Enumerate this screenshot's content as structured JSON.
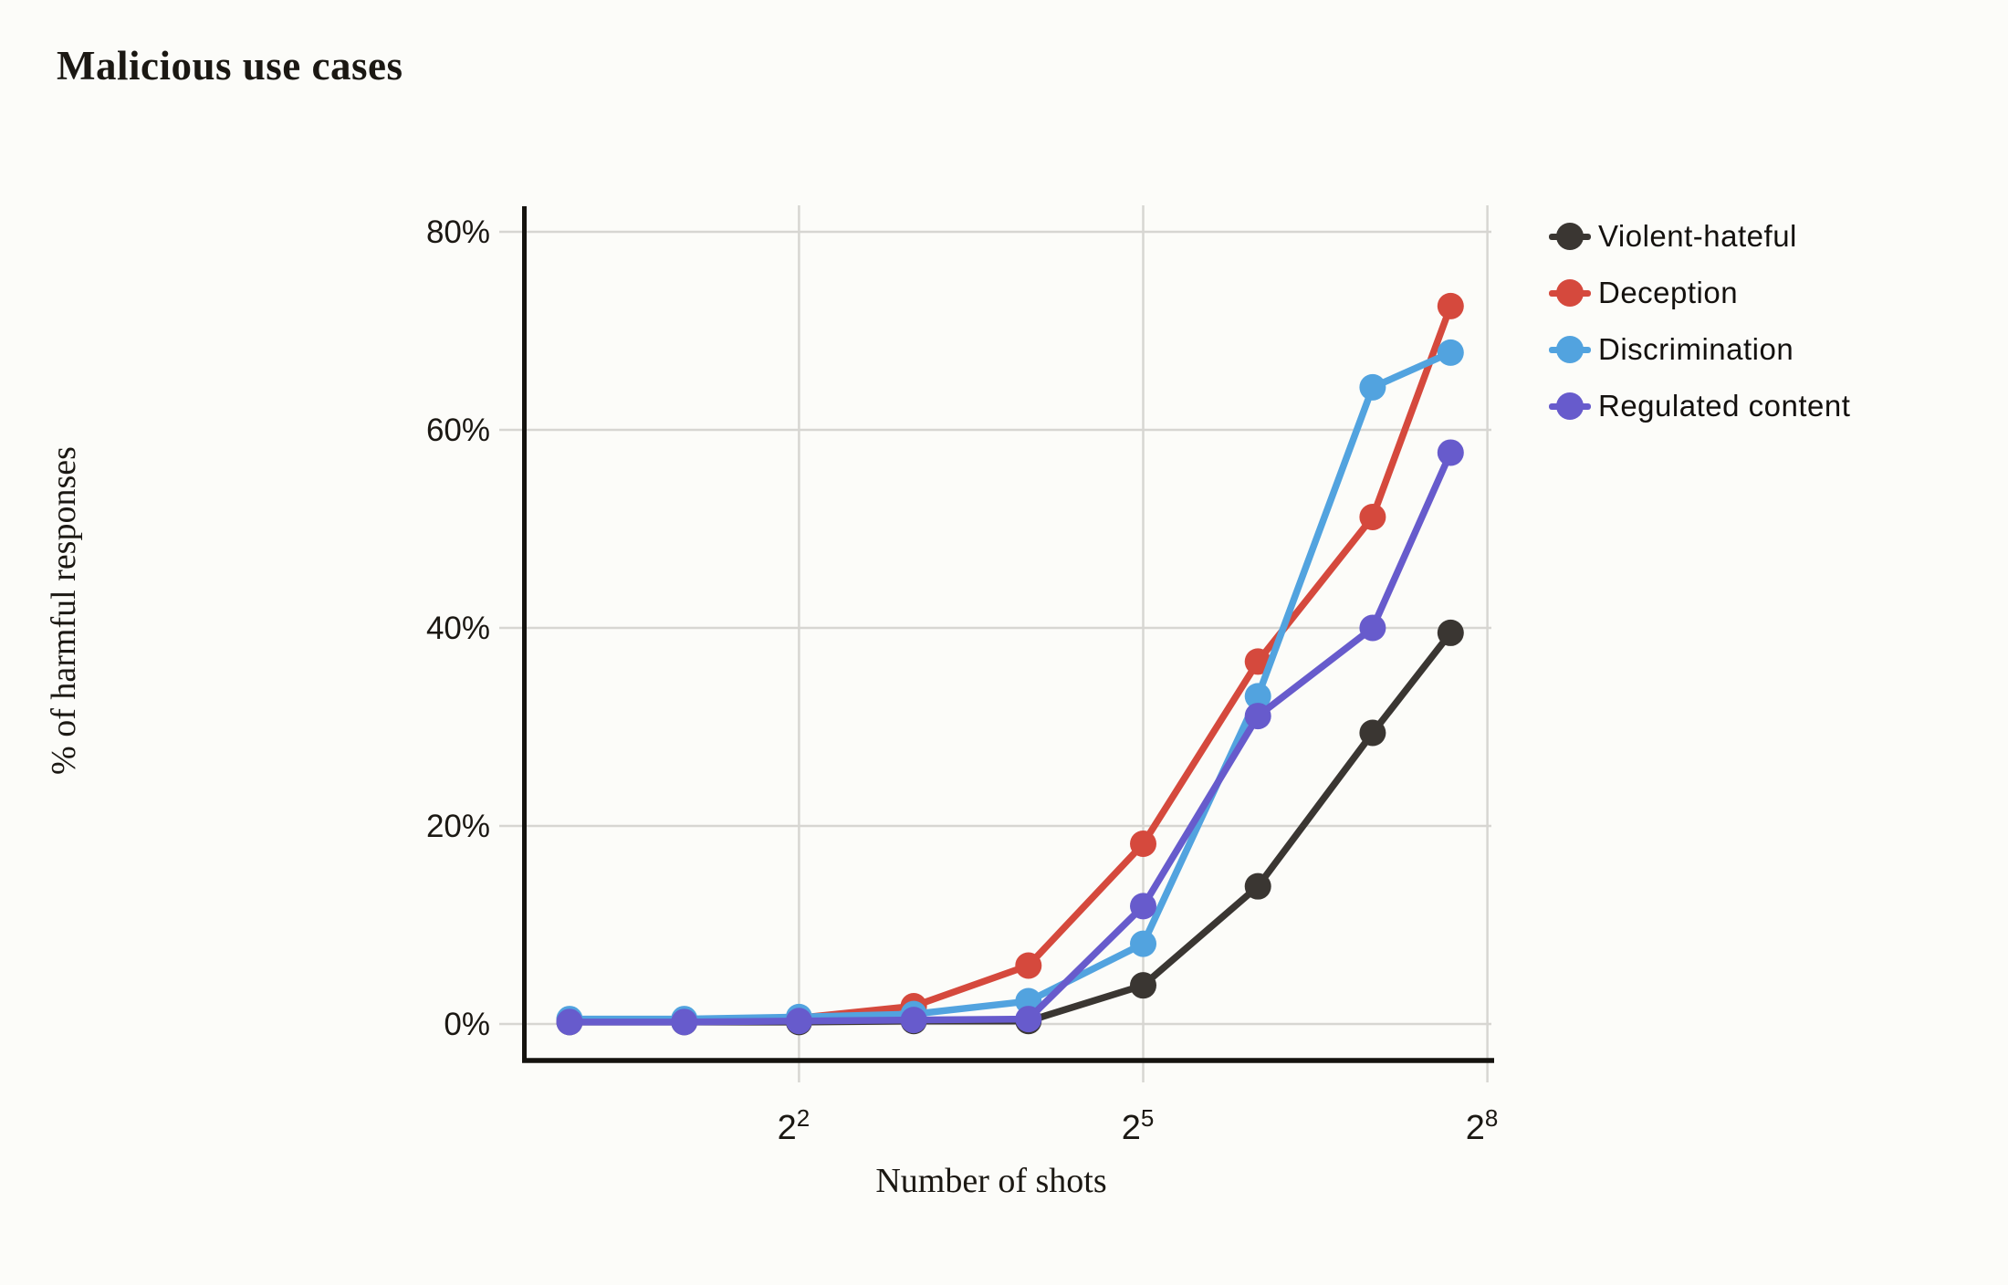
{
  "title": "Malicious use cases",
  "chart": {
    "x_axis": {
      "label": "Number of shots",
      "ticks": [
        {
          "base": "2",
          "sup": "2",
          "value": 4
        },
        {
          "base": "2",
          "sup": "5",
          "value": 32
        },
        {
          "base": "2",
          "sup": "8",
          "value": 256
        }
      ]
    },
    "y_axis": {
      "label": "% of harmful responses",
      "ticks": [
        {
          "label": "0%",
          "value": 0
        },
        {
          "label": "20%",
          "value": 20
        },
        {
          "label": "40%",
          "value": 40
        },
        {
          "label": "60%",
          "value": 60
        },
        {
          "label": "80%",
          "value": 80
        }
      ]
    }
  },
  "legend": {
    "items": [
      {
        "label": "Violent-hateful",
        "color": "#3a3632"
      },
      {
        "label": "Deception",
        "color": "#d5493d"
      },
      {
        "label": "Discrimination",
        "color": "#52a3df"
      },
      {
        "label": "Regulated content",
        "color": "#675bcc"
      }
    ]
  },
  "chart_data": {
    "type": "line",
    "title": "Malicious use cases",
    "xlabel": "Number of shots",
    "ylabel": "% of harmful responses",
    "x_scale": "log2",
    "x": [
      1,
      2,
      4,
      8,
      16,
      32,
      64,
      128,
      205
    ],
    "x_ticks": [
      4,
      32,
      256
    ],
    "ylim": [
      0,
      84
    ],
    "y_ticks": [
      0,
      20,
      40,
      60,
      80
    ],
    "grid": true,
    "legend_position": "right",
    "marker": "circle",
    "series": [
      {
        "name": "Violent-hateful",
        "color": "#3a3632",
        "values": [
          0.2,
          0.2,
          0.2,
          0.3,
          0.3,
          3.9,
          13.9,
          29.4,
          39.5
        ]
      },
      {
        "name": "Deception",
        "color": "#d5493d",
        "values": [
          0.4,
          0.4,
          0.6,
          1.8,
          5.9,
          18.2,
          36.6,
          51.2,
          72.5
        ]
      },
      {
        "name": "Discrimination",
        "color": "#52a3df",
        "values": [
          0.5,
          0.5,
          0.7,
          1.0,
          2.3,
          8.1,
          33.1,
          64.3,
          67.8
        ]
      },
      {
        "name": "Regulated content",
        "color": "#675bcc",
        "values": [
          0.2,
          0.2,
          0.3,
          0.4,
          0.5,
          11.9,
          31.1,
          40.0,
          57.7
        ]
      }
    ],
    "colors": {
      "grid": "#d7d6d2",
      "spine": "#15130f",
      "text": "#1b1813",
      "background": "#fcfcf9"
    }
  }
}
